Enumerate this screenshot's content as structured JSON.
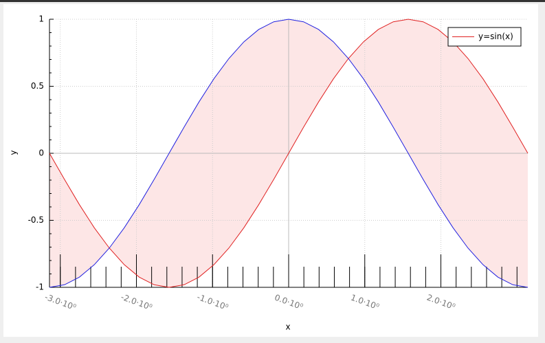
{
  "chart_data": {
    "type": "line",
    "x_label": "x",
    "y_label": "y",
    "x": [
      -3.142,
      -2.945,
      -2.749,
      -2.553,
      -2.356,
      -2.16,
      -1.963,
      -1.767,
      -1.571,
      -1.374,
      -1.178,
      -0.982,
      -0.785,
      -0.589,
      -0.393,
      -0.196,
      0,
      0.196,
      0.393,
      0.589,
      0.785,
      0.982,
      1.178,
      1.374,
      1.571,
      1.767,
      1.963,
      2.16,
      2.356,
      2.553,
      2.749,
      2.945,
      3.142
    ],
    "series": [
      {
        "name": "y=sin(x)",
        "color": "#e02020",
        "values": [
          0,
          -0.195,
          -0.383,
          -0.556,
          -0.707,
          -0.831,
          -0.924,
          -0.981,
          -1,
          -0.981,
          -0.924,
          -0.831,
          -0.707,
          -0.556,
          -0.383,
          -0.195,
          0,
          0.195,
          0.383,
          0.556,
          0.707,
          0.831,
          0.924,
          0.981,
          1,
          0.981,
          0.924,
          0.831,
          0.707,
          0.556,
          0.383,
          0.195,
          0
        ]
      },
      {
        "color": "#2020e0",
        "values": [
          -1,
          -0.981,
          -0.924,
          -0.831,
          -0.707,
          -0.556,
          -0.383,
          -0.195,
          0,
          0.195,
          0.383,
          0.556,
          0.707,
          0.831,
          0.924,
          0.981,
          1,
          0.981,
          0.924,
          0.831,
          0.707,
          0.556,
          0.383,
          0.195,
          0,
          -0.195,
          -0.383,
          -0.556,
          -0.707,
          -0.831,
          -0.924,
          -0.981,
          -1
        ]
      }
    ],
    "fill_between": true,
    "fill_color": "#fde6e6",
    "xlim": [
      -3.142,
      3.142
    ],
    "ylim": [
      -1,
      1
    ],
    "xticks": [
      {
        "value": -3,
        "label": "-3.0·10⁰"
      },
      {
        "value": -2,
        "label": "-2.0·10⁰"
      },
      {
        "value": -1,
        "label": "-1.0·10⁰"
      },
      {
        "value": 0,
        "label": "0.0·10⁰"
      },
      {
        "value": 1,
        "label": "1.0·10⁰"
      },
      {
        "value": 2,
        "label": "2.0·10⁰"
      }
    ],
    "xminorticks": [
      -3,
      -2.8,
      -2.6,
      -2.4,
      -2.2,
      -2,
      -1.8,
      -1.6,
      -1.4,
      -1.2,
      -1,
      -0.8,
      -0.6,
      -0.4,
      -0.2,
      0,
      0.2,
      0.4,
      0.6,
      0.8,
      1,
      1.2,
      1.4,
      1.6,
      1.8,
      2,
      2.2,
      2.4,
      2.6,
      2.8,
      3
    ],
    "yticks": [
      -1,
      -0.5,
      0,
      0.5,
      1
    ],
    "yminorticks": [
      -0.9,
      -0.8,
      -0.7,
      -0.6,
      -0.4,
      -0.3,
      -0.2,
      -0.1,
      0.1,
      0.2,
      0.3,
      0.4,
      0.6,
      0.7,
      0.8,
      0.9
    ],
    "grid": true,
    "legend": "upper right"
  }
}
